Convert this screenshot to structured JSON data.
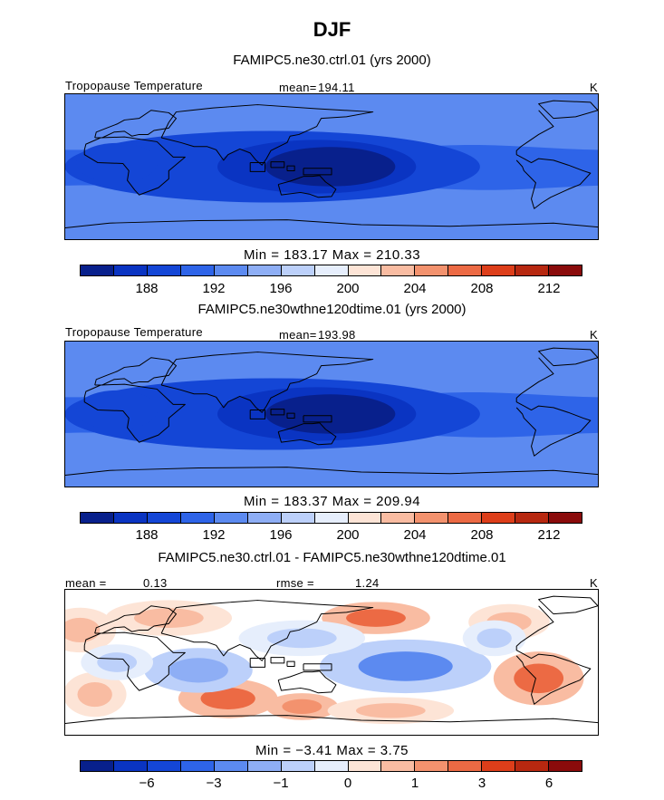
{
  "title": "DJF",
  "colorbar_colors_abs": [
    "#08208c",
    "#0a34c2",
    "#1446d6",
    "#2e64e8",
    "#5c8af0",
    "#8eaef5",
    "#bcd0fa",
    "#e6eefc",
    "#fde4d6",
    "#f9bca2",
    "#f3926e",
    "#ec6a44",
    "#dd3e1a",
    "#b72810",
    "#8a0b0b"
  ],
  "colorbar_colors_diff": [
    "#08208c",
    "#0a34c2",
    "#1446d6",
    "#2e64e8",
    "#5c8af0",
    "#8eaef5",
    "#bcd0fa",
    "#e6eefc",
    "#fde4d6",
    "#f9bca2",
    "#f3926e",
    "#ec6a44",
    "#dd3e1a",
    "#b72810",
    "#8a0b0b"
  ],
  "panels": [
    {
      "title": "FAMIPC5.ne30.ctrl.01 (yrs 2000)",
      "field": "Tropopause Temperature",
      "stat_label": "mean=",
      "stat_value": "194.11",
      "units": "K",
      "min_max": "Min  =  183.17  Max  =  210.33",
      "ticks": [
        "188",
        "192",
        "196",
        "200",
        "204",
        "208",
        "212"
      ]
    },
    {
      "title": "FAMIPC5.ne30wthne120dtime.01 (yrs 2000)",
      "field": "Tropopause Temperature",
      "stat_label": "mean=",
      "stat_value": "193.98",
      "units": "K",
      "min_max": "Min  =  183.37  Max  =  209.94",
      "ticks": [
        "188",
        "192",
        "196",
        "200",
        "204",
        "208",
        "212"
      ]
    },
    {
      "title": "FAMIPC5.ne30.ctrl.01 - FAMIPC5.ne30wthne120dtime.01",
      "mean_label": "mean =",
      "mean_value": "0.13",
      "rmse_label": "rmse =",
      "rmse_value": "1.24",
      "units": "K",
      "min_max": "Min  =   −3.41  Max  =    3.75",
      "ticks": [
        "−6",
        "−3",
        "−1",
        "0",
        "1",
        "3",
        "6"
      ]
    }
  ],
  "chart_data": [
    {
      "type": "heatmap",
      "title": "FAMIPC5.ne30.ctrl.01 (yrs 2000)",
      "variable": "Tropopause Temperature",
      "units": "K",
      "mean": 194.11,
      "min": 183.17,
      "max": 210.33,
      "colorbar_ticks": [
        188,
        192,
        196,
        200,
        204,
        208,
        212
      ],
      "lat_range": [
        -90,
        90
      ],
      "lon_range": [
        -30,
        330
      ],
      "features": [
        {
          "lon": 140,
          "lat": 0,
          "value": 183.5
        },
        {
          "lon": 0,
          "lat": 5,
          "value": 186
        }
      ]
    },
    {
      "type": "heatmap",
      "title": "FAMIPC5.ne30wthne120dtime.01 (yrs 2000)",
      "variable": "Tropopause Temperature",
      "units": "K",
      "mean": 193.98,
      "min": 183.37,
      "max": 209.94,
      "colorbar_ticks": [
        188,
        192,
        196,
        200,
        204,
        208,
        212
      ],
      "lat_range": [
        -90,
        90
      ],
      "lon_range": [
        -30,
        330
      ],
      "features": [
        {
          "lon": 140,
          "lat": 0,
          "value": 183.7
        },
        {
          "lon": 0,
          "lat": 5,
          "value": 186
        }
      ]
    },
    {
      "type": "heatmap",
      "title": "FAMIPC5.ne30.ctrl.01 - FAMIPC5.ne30wthne120dtime.01",
      "units": "K",
      "mean": 0.13,
      "rmse": 1.24,
      "min": -3.41,
      "max": 3.75,
      "colorbar_ticks": [
        -6,
        -3,
        -1,
        0,
        1,
        3,
        6
      ],
      "lat_range": [
        -90,
        90
      ],
      "lon_range": [
        -30,
        330
      ],
      "features": [
        {
          "lon": 180,
          "lat": 55,
          "value": 3.5
        },
        {
          "lon": 80,
          "lat": -45,
          "value": 3.2
        },
        {
          "lon": 120,
          "lat": -55,
          "value": 2.8
        },
        {
          "lon": 290,
          "lat": -20,
          "value": 2.5
        },
        {
          "lon": 200,
          "lat": -5,
          "value": -2.8
        },
        {
          "lon": 60,
          "lat": -10,
          "value": -2.2
        }
      ]
    }
  ]
}
